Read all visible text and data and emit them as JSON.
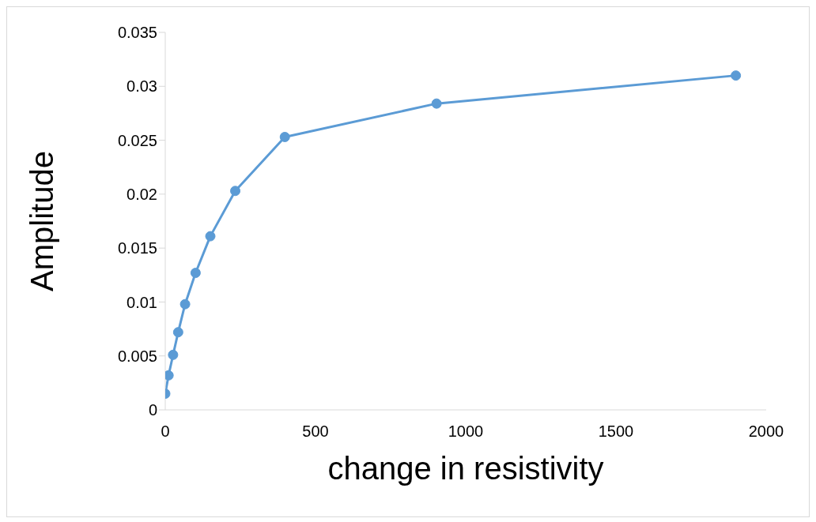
{
  "chart_data": {
    "type": "line",
    "xlabel": "change in resistivity",
    "ylabel": "Amplitude",
    "x": [
      0,
      11,
      26,
      43,
      66,
      101,
      150,
      233,
      398,
      903,
      1899
    ],
    "series": [
      {
        "color": "#5b9bd5",
        "values": [
          0.0015,
          0.0032,
          0.0051,
          0.0072,
          0.0098,
          0.0127,
          0.0161,
          0.0203,
          0.0253,
          0.0284,
          0.031
        ]
      }
    ],
    "xlim": [
      0,
      2000
    ],
    "xticks": [
      0,
      500,
      1000,
      1500,
      2000
    ],
    "ylim": [
      0,
      0.035
    ],
    "yticks": [
      0,
      0.005,
      0.01,
      0.015,
      0.02,
      0.025,
      0.03,
      0.035
    ],
    "grid": false,
    "legend": false,
    "marker": "circle",
    "line_style": "solid"
  }
}
